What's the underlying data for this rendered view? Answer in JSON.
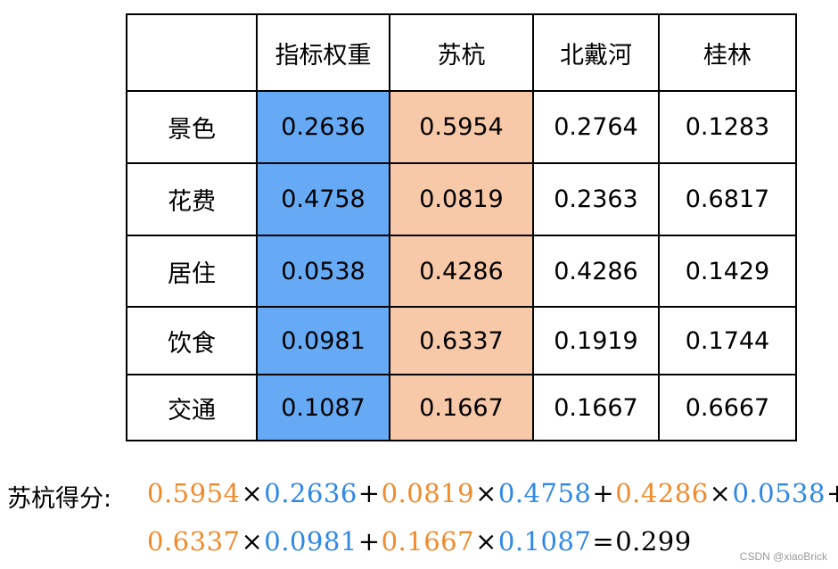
{
  "table": {
    "corner": "",
    "headers": [
      "指标权重",
      "苏杭",
      "北戴河",
      "桂林"
    ],
    "rows": [
      {
        "label": "景色",
        "values": [
          "0.2636",
          "0.5954",
          "0.2764",
          "0.1283"
        ]
      },
      {
        "label": "花费",
        "values": [
          "0.4758",
          "0.0819",
          "0.2363",
          "0.6817"
        ]
      },
      {
        "label": "居住",
        "values": [
          "0.0538",
          "0.4286",
          "0.4286",
          "0.1429"
        ]
      },
      {
        "label": "饮食",
        "values": [
          "0.0981",
          "0.6337",
          "0.1919",
          "0.1744"
        ]
      },
      {
        "label": "交通",
        "values": [
          "0.1087",
          "0.1667",
          "0.1667",
          "0.6667"
        ]
      }
    ]
  },
  "colors": {
    "weight_column": "#66aaf6",
    "suhang_column": "#f8c9a8",
    "formula_orange": "#f08b2c",
    "formula_blue": "#2f88e6"
  },
  "formula": {
    "label": "苏杭得分:",
    "times": "×",
    "plus": "+",
    "equals": "=",
    "terms": [
      {
        "score": "0.5954",
        "weight": "0.2636"
      },
      {
        "score": "0.0819",
        "weight": "0.4758"
      },
      {
        "score": "0.4286",
        "weight": "0.0538"
      },
      {
        "score": "0.6337",
        "weight": "0.0981"
      },
      {
        "score": "0.1667",
        "weight": "0.1087"
      }
    ],
    "result": "0.299"
  },
  "watermark": "CSDN @xiaoBrick"
}
